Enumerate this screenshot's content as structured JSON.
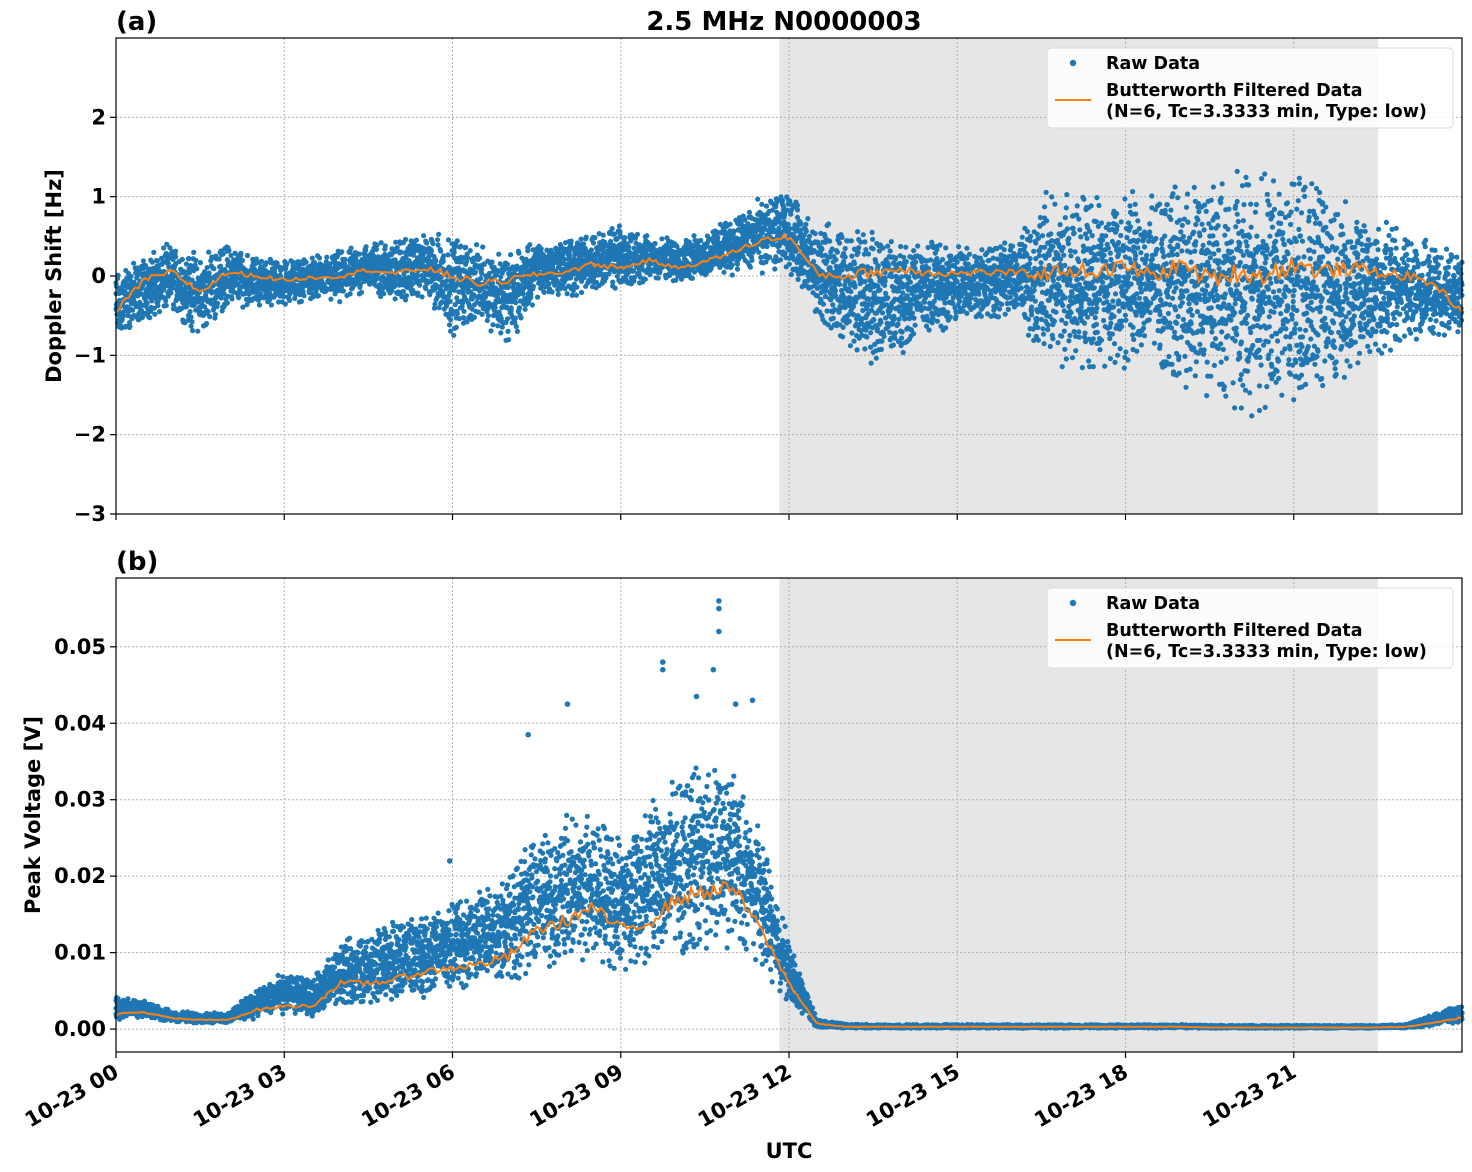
{
  "title": "2.5 MHz N0000003",
  "xlabel": "UTC",
  "x_ticks": [
    "10-23 00",
    "10-23 03",
    "10-23 06",
    "10-23 09",
    "10-23 12",
    "10-23 15",
    "10-23 18",
    "10-23 21"
  ],
  "shade": {
    "start_hour": 11.83,
    "end_hour": 22.5,
    "color": "#e6e6e6"
  },
  "colors": {
    "raw": "#1f77b4",
    "filtered": "#ff7f0e"
  },
  "legend": {
    "raw": "Raw Data",
    "filtered_1": "Butterworth Filtered Data",
    "filtered_2": "(N=6, Tc=3.3333 min, Type: low)",
    "placement": "top-right"
  },
  "chart_data": [
    {
      "type": "scatter",
      "panel": "(a)",
      "ylabel": "Doppler Shift [Hz]",
      "xlim": [
        "10-23 00:00",
        "10-24 00:00"
      ],
      "ylim": [
        -3,
        3
      ],
      "y_ticks": [
        -3,
        -2,
        -1,
        0,
        1,
        2
      ],
      "grid": true,
      "x_hours": [
        0,
        0.5,
        1,
        1.5,
        2,
        2.5,
        3,
        3.5,
        4,
        4.5,
        5,
        5.5,
        6,
        6.5,
        7,
        7.5,
        8,
        8.5,
        9,
        9.5,
        10,
        10.5,
        11,
        11.5,
        12,
        12.5,
        13,
        13.5,
        14,
        14.5,
        15,
        15.5,
        16,
        16.5,
        17,
        17.5,
        18,
        18.5,
        19,
        19.5,
        20,
        20.5,
        21,
        21.5,
        22,
        22.5,
        23,
        23.5,
        24
      ],
      "series": [
        {
          "name": "Butterworth Filtered Data",
          "style": "line",
          "values": [
            -0.45,
            -0.05,
            0.05,
            -0.2,
            0.05,
            0.0,
            -0.05,
            -0.02,
            0.0,
            0.08,
            0.03,
            0.1,
            0.0,
            -0.1,
            -0.05,
            0.02,
            0.05,
            0.15,
            0.1,
            0.2,
            0.1,
            0.18,
            0.3,
            0.45,
            0.5,
            0.02,
            0.0,
            0.05,
            0.08,
            0.05,
            0.03,
            0.05,
            0.04,
            0.02,
            0.08,
            0.05,
            0.12,
            0.0,
            0.15,
            -0.05,
            0.05,
            0.0,
            0.15,
            0.05,
            0.1,
            0.05,
            0.0,
            -0.1,
            -0.45
          ]
        },
        {
          "name": "Raw Data",
          "style": "band",
          "low": [
            -0.9,
            -0.6,
            -0.5,
            -0.8,
            -0.4,
            -0.4,
            -0.4,
            -0.3,
            -0.4,
            -0.2,
            -0.4,
            -0.3,
            -0.8,
            -0.6,
            -0.9,
            -0.3,
            -0.3,
            -0.2,
            -0.2,
            -0.1,
            -0.1,
            -0.05,
            0.0,
            0.0,
            0.05,
            -0.6,
            -0.9,
            -1.2,
            -1.0,
            -0.8,
            -0.7,
            -0.6,
            -0.5,
            -1.1,
            -1.3,
            -1.2,
            -1.3,
            -1.1,
            -1.5,
            -1.6,
            -1.8,
            -1.8,
            -1.7,
            -1.6,
            -1.3,
            -1.1,
            -0.9,
            -0.8,
            -0.8
          ],
          "high": [
            0.1,
            0.3,
            0.45,
            0.3,
            0.45,
            0.25,
            0.25,
            0.25,
            0.35,
            0.45,
            0.5,
            0.55,
            0.6,
            0.4,
            0.35,
            0.45,
            0.5,
            0.6,
            0.65,
            0.55,
            0.5,
            0.55,
            0.8,
            1.0,
            1.1,
            0.65,
            0.7,
            0.6,
            0.5,
            0.5,
            0.45,
            0.5,
            0.45,
            1.05,
            1.15,
            1.15,
            1.15,
            1.1,
            1.2,
            1.3,
            1.4,
            1.45,
            1.35,
            1.2,
            0.95,
            0.8,
            0.6,
            0.4,
            0.3
          ]
        }
      ]
    },
    {
      "type": "scatter",
      "panel": "(b)",
      "ylabel": "Peak Voltage [V]",
      "xlim": [
        "10-23 00:00",
        "10-24 00:00"
      ],
      "ylim": [
        -0.003,
        0.059
      ],
      "y_ticks": [
        0.0,
        0.01,
        0.02,
        0.03,
        0.04,
        0.05
      ],
      "y_tick_labels": [
        "0.00",
        "0.01",
        "0.02",
        "0.03",
        "0.04",
        "0.05"
      ],
      "grid": true,
      "x_hours": [
        0,
        0.5,
        1,
        1.5,
        2,
        2.5,
        3,
        3.5,
        4,
        4.5,
        5,
        5.5,
        6,
        6.5,
        7,
        7.5,
        8,
        8.5,
        9,
        9.5,
        10,
        10.5,
        11,
        11.5,
        12,
        12.5,
        13,
        13.5,
        14,
        14.5,
        15,
        15.5,
        16,
        16.5,
        17,
        17.5,
        18,
        18.5,
        19,
        19.5,
        20,
        20.5,
        21,
        21.5,
        22,
        22.5,
        23,
        23.5,
        24
      ],
      "series": [
        {
          "name": "Butterworth Filtered Data",
          "style": "line",
          "values": [
            0.002,
            0.0022,
            0.0014,
            0.0012,
            0.0012,
            0.0025,
            0.003,
            0.003,
            0.006,
            0.006,
            0.0065,
            0.0075,
            0.008,
            0.0085,
            0.0095,
            0.013,
            0.014,
            0.016,
            0.013,
            0.014,
            0.017,
            0.018,
            0.0185,
            0.013,
            0.006,
            0.0007,
            0.0003,
            0.0003,
            0.0003,
            0.0003,
            0.0003,
            0.0003,
            0.0003,
            0.0003,
            0.0003,
            0.0003,
            0.0003,
            0.0003,
            0.0003,
            0.0002,
            0.0002,
            0.0002,
            0.0002,
            0.0002,
            0.0002,
            0.0002,
            0.0003,
            0.0008,
            0.0015
          ]
        },
        {
          "name": "Raw Data",
          "style": "band",
          "low": [
            0.0012,
            0.0015,
            0.0008,
            0.0007,
            0.0007,
            0.0013,
            0.0018,
            0.0016,
            0.0028,
            0.003,
            0.0035,
            0.004,
            0.0045,
            0.005,
            0.0055,
            0.007,
            0.0075,
            0.0085,
            0.007,
            0.0075,
            0.009,
            0.0095,
            0.01,
            0.008,
            0.003,
            0.0002,
            0.0001,
            0.0001,
            0.0001,
            0.0001,
            0.0001,
            0.0001,
            0.0001,
            0.0001,
            0.0001,
            0.0001,
            0.0001,
            0.0001,
            0.0001,
            0.0001,
            0.0001,
            0.0001,
            0.0001,
            0.0001,
            0.0001,
            0.0001,
            0.0001,
            0.0004,
            0.0008
          ],
          "high": [
            0.0045,
            0.0038,
            0.0025,
            0.0022,
            0.0022,
            0.0055,
            0.0075,
            0.0068,
            0.0115,
            0.013,
            0.0145,
            0.0155,
            0.017,
            0.019,
            0.022,
            0.026,
            0.028,
            0.029,
            0.026,
            0.03,
            0.034,
            0.035,
            0.035,
            0.026,
            0.012,
            0.0012,
            0.0007,
            0.0006,
            0.0006,
            0.0006,
            0.0006,
            0.0006,
            0.0006,
            0.0006,
            0.0006,
            0.0006,
            0.0006,
            0.0006,
            0.0006,
            0.0005,
            0.0005,
            0.0005,
            0.0005,
            0.0005,
            0.0005,
            0.0005,
            0.0007,
            0.002,
            0.0035
          ]
        }
      ],
      "outliers": [
        [
          5.95,
          0.022
        ],
        [
          7.35,
          0.0385
        ],
        [
          8.05,
          0.0425
        ],
        [
          9.75,
          0.048
        ],
        [
          9.75,
          0.047
        ],
        [
          10.35,
          0.0435
        ],
        [
          10.65,
          0.047
        ],
        [
          10.75,
          0.056
        ],
        [
          10.75,
          0.055
        ],
        [
          10.75,
          0.052
        ],
        [
          11.05,
          0.0425
        ],
        [
          11.35,
          0.043
        ]
      ]
    }
  ]
}
